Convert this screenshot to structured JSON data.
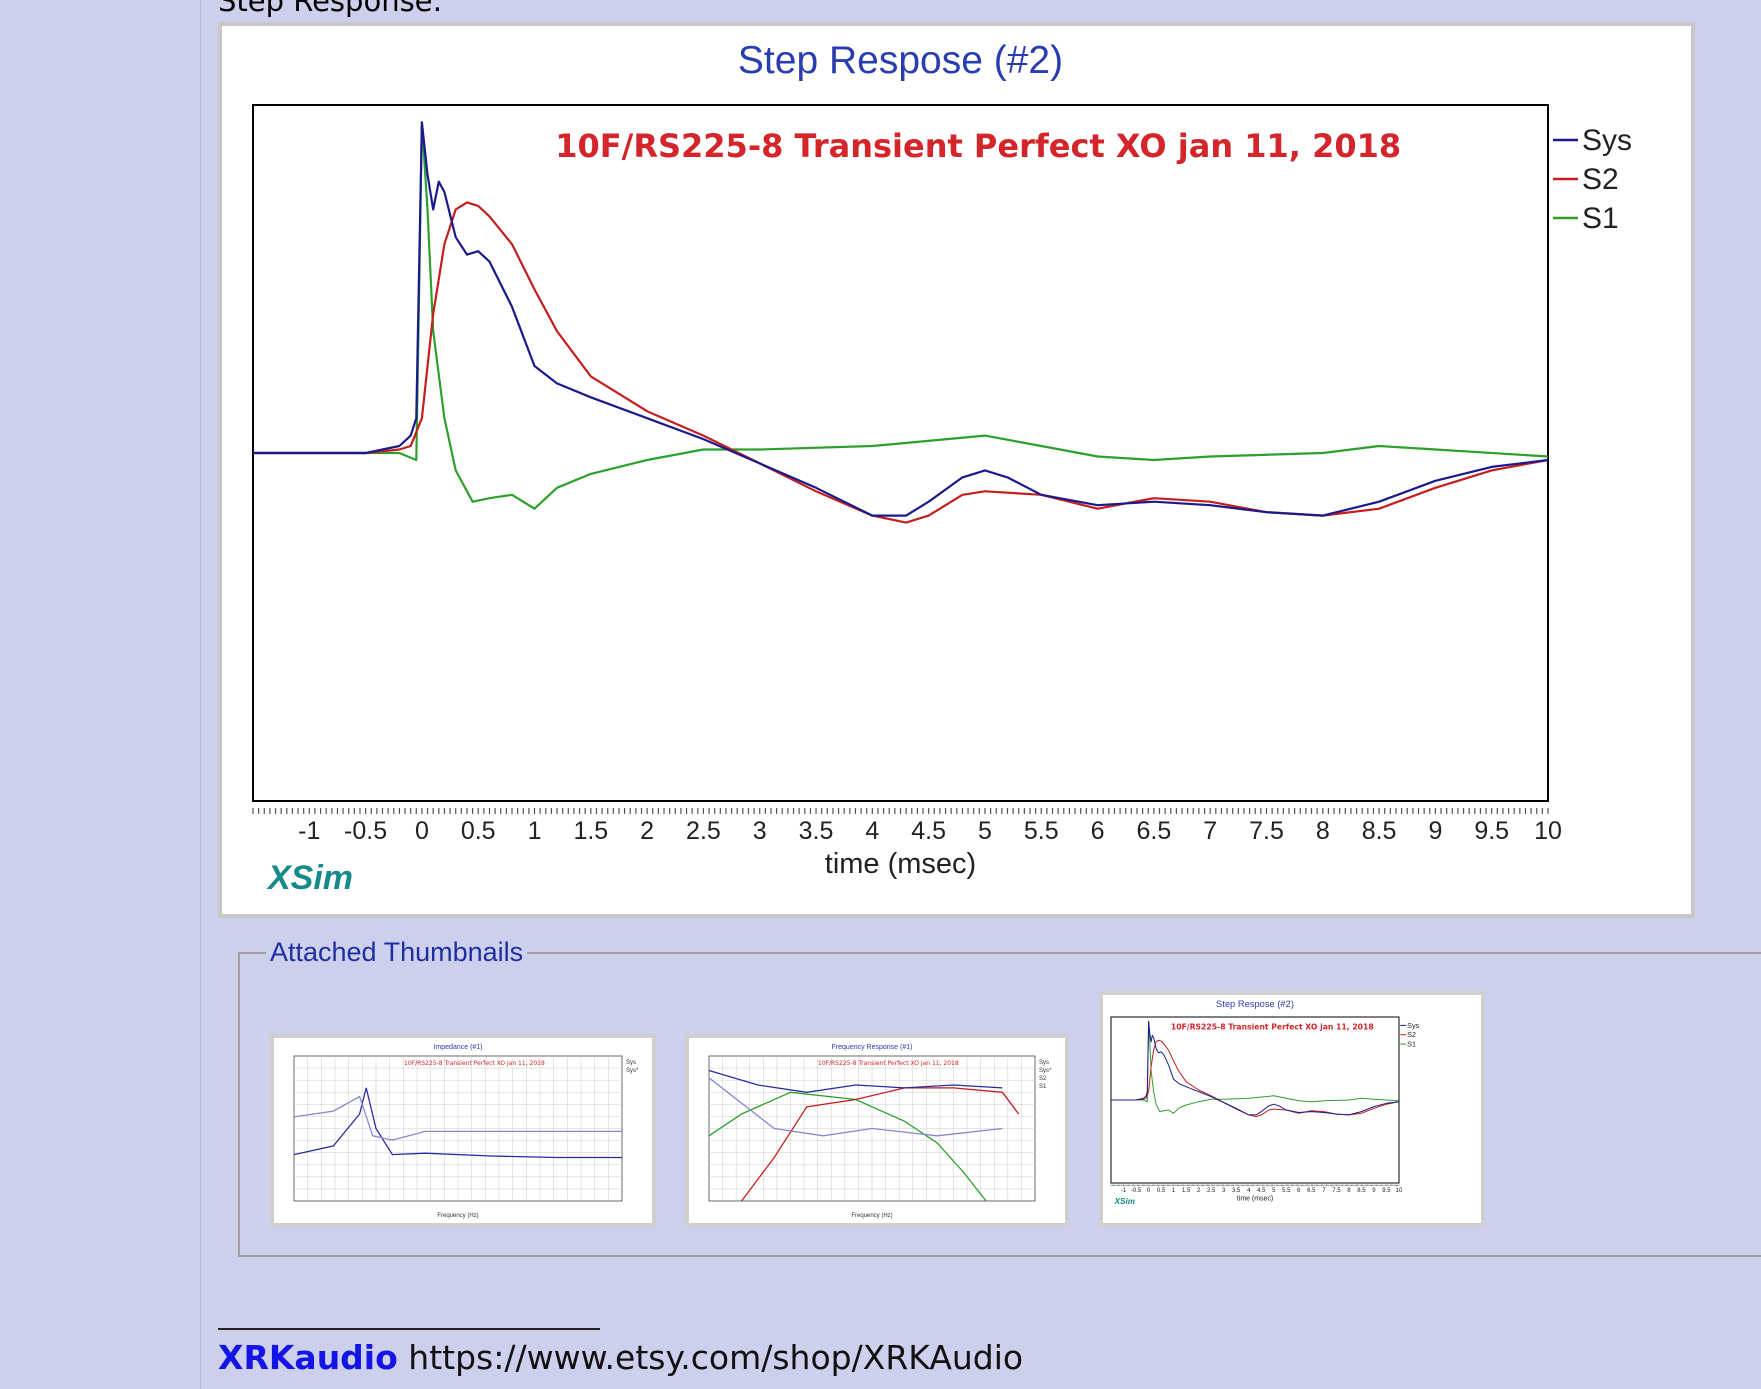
{
  "page": {
    "section_heading": "Step Response:",
    "thumbnails_legend": "Attached Thumbnails",
    "signature": {
      "brand": "XRKaudio",
      "url": "https://www.etsy.com/shop/XRKAudio"
    }
  },
  "chart_data": {
    "type": "line",
    "title": "Step Respose (#2)",
    "annotation": "10F/RS225-8 Transient Perfect XO  jan 11, 2018",
    "xlabel": "time (msec)",
    "ylabel": "",
    "watermark": "XSim",
    "x_ticks": [
      "-1",
      "-0.5",
      "0",
      "0.5",
      "1",
      "1.5",
      "2",
      "2.5",
      "3",
      "3.5",
      "4",
      "4.5",
      "5",
      "5.5",
      "6",
      "6.5",
      "7",
      "7.5",
      "8",
      "8.5",
      "9",
      "9.5",
      "10"
    ],
    "xlim": [
      -1.5,
      10
    ],
    "ylim": [
      -1,
      1
    ],
    "grid": false,
    "legend_position": "right",
    "series": [
      {
        "name": "Sys",
        "color": "#1a1a8c",
        "x": [
          -1.5,
          -0.5,
          -0.2,
          -0.1,
          -0.05,
          0.0,
          0.05,
          0.1,
          0.15,
          0.2,
          0.3,
          0.4,
          0.5,
          0.6,
          0.8,
          1.0,
          1.2,
          1.5,
          2.0,
          2.5,
          3.0,
          3.5,
          4.0,
          4.3,
          4.5,
          4.8,
          5.0,
          5.2,
          5.5,
          6.0,
          6.5,
          7.0,
          7.5,
          8.0,
          8.5,
          9.0,
          9.5,
          10.0
        ],
        "y": [
          0,
          0,
          0.02,
          0.05,
          0.1,
          0.95,
          0.8,
          0.7,
          0.78,
          0.75,
          0.62,
          0.57,
          0.58,
          0.55,
          0.42,
          0.25,
          0.2,
          0.16,
          0.1,
          0.04,
          -0.03,
          -0.1,
          -0.18,
          -0.18,
          -0.14,
          -0.07,
          -0.05,
          -0.07,
          -0.12,
          -0.15,
          -0.14,
          -0.15,
          -0.17,
          -0.18,
          -0.14,
          -0.08,
          -0.04,
          -0.02
        ]
      },
      {
        "name": "S2",
        "color": "#c41e1e",
        "x": [
          -1.5,
          -0.5,
          -0.2,
          -0.1,
          0.0,
          0.1,
          0.2,
          0.3,
          0.4,
          0.5,
          0.6,
          0.8,
          1.0,
          1.2,
          1.5,
          2.0,
          2.5,
          3.0,
          3.5,
          4.0,
          4.3,
          4.5,
          4.8,
          5.0,
          5.5,
          6.0,
          6.5,
          7.0,
          7.5,
          8.0,
          8.5,
          9.0,
          9.5,
          10.0
        ],
        "y": [
          0,
          0,
          0.01,
          0.02,
          0.1,
          0.4,
          0.6,
          0.7,
          0.72,
          0.71,
          0.68,
          0.6,
          0.47,
          0.35,
          0.22,
          0.12,
          0.05,
          -0.03,
          -0.11,
          -0.18,
          -0.2,
          -0.18,
          -0.12,
          -0.11,
          -0.12,
          -0.16,
          -0.13,
          -0.14,
          -0.17,
          -0.18,
          -0.16,
          -0.1,
          -0.05,
          -0.02
        ]
      },
      {
        "name": "S1",
        "color": "#2ca02c",
        "x": [
          -1.5,
          -0.2,
          -0.05,
          0.0,
          0.05,
          0.1,
          0.2,
          0.3,
          0.45,
          0.6,
          0.8,
          1.0,
          1.2,
          1.5,
          2.0,
          2.5,
          3.0,
          4.0,
          5.0,
          5.5,
          6.0,
          6.5,
          7.0,
          8.0,
          8.5,
          9.0,
          10.0
        ],
        "y": [
          0,
          0,
          -0.02,
          0.95,
          0.7,
          0.35,
          0.1,
          -0.05,
          -0.14,
          -0.13,
          -0.12,
          -0.16,
          -0.1,
          -0.06,
          -0.02,
          0.01,
          0.01,
          0.02,
          0.05,
          0.02,
          -0.01,
          -0.02,
          -0.01,
          0.0,
          0.02,
          0.01,
          -0.01
        ]
      }
    ]
  },
  "thumbnails": [
    {
      "title": "Impedance (#1)",
      "annotation": "10F/RS225-8 Transient Perfect XO  jan 11, 2018",
      "xlabel": "Frequency (Hz)",
      "legend": [
        "Sys",
        "Sys*"
      ]
    },
    {
      "title": "Frequency Response (#1)",
      "annotation": "10F/RS225-8 Transient Perfect XO  jan 11, 2018",
      "xlabel": "Frequency (Hz)",
      "legend": [
        "Sys",
        "Sys*",
        "S2",
        "S1"
      ]
    },
    {
      "title": "Step Respose (#2)",
      "annotation": "10F/RS225-8 Transient Perfect XO  jan 11, 2018",
      "xlabel": "time (msec)",
      "legend": [
        "Sys",
        "S2",
        "S1"
      ]
    }
  ]
}
